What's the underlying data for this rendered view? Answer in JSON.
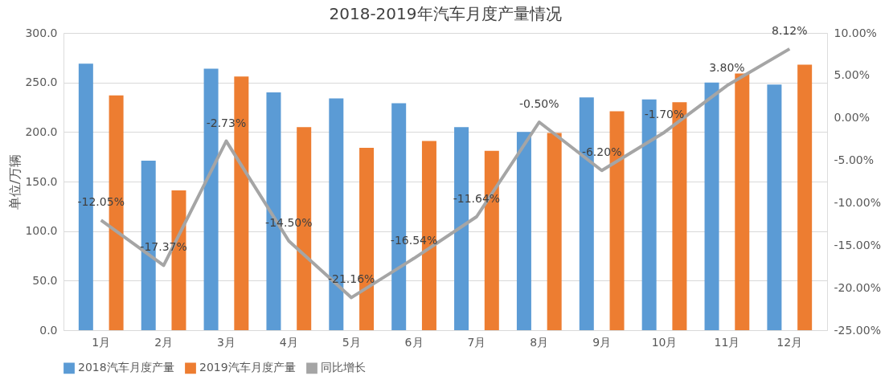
{
  "chart_data": {
    "type": "bar",
    "title": "2018-2019年汽车月度产量情况",
    "ylabel": "单位/万辆",
    "categories": [
      "1月",
      "2月",
      "3月",
      "4月",
      "5月",
      "6月",
      "7月",
      "8月",
      "9月",
      "10月",
      "11月",
      "12月"
    ],
    "series": [
      {
        "name": "2018汽车月度产量",
        "color": "#5b9bd5",
        "values": [
          269,
          171,
          264,
          240,
          234,
          229,
          205,
          200,
          235,
          233,
          250,
          248
        ]
      },
      {
        "name": "2019汽车月度产量",
        "color": "#ed7d31",
        "values": [
          237,
          141,
          256,
          205,
          184,
          191,
          181,
          199,
          221,
          230,
          259,
          268
        ]
      },
      {
        "name": "同比增长",
        "type": "line",
        "axis": "y2",
        "color": "#a5a5a5",
        "values": [
          -12.05,
          -17.37,
          -2.73,
          -14.5,
          -21.16,
          -16.54,
          -11.64,
          -0.5,
          -6.2,
          -1.7,
          3.8,
          8.12
        ],
        "value_labels": [
          "-12.05%",
          "-17.37%",
          "-2.73%",
          "-14.50%",
          "-21.16%",
          "-16.54%",
          "-11.64%",
          "-0.50%",
          "-6.20%",
          "-1.70%",
          "3.80%",
          "8.12%"
        ]
      }
    ],
    "ylim": [
      0,
      300
    ],
    "yticks": [
      {
        "value": 0,
        "label": "0.0"
      },
      {
        "value": 50,
        "label": "50.0"
      },
      {
        "value": 100,
        "label": "100.0"
      },
      {
        "value": 150,
        "label": "150.0"
      },
      {
        "value": 200,
        "label": "200.0"
      },
      {
        "value": 250,
        "label": "250.0"
      },
      {
        "value": 300,
        "label": "300.0"
      }
    ],
    "y2lim": [
      -25,
      10
    ],
    "y2ticks": [
      {
        "value": -25,
        "label": "-25.00%"
      },
      {
        "value": -20,
        "label": "-20.00%"
      },
      {
        "value": -15,
        "label": "-15.00%"
      },
      {
        "value": -10,
        "label": "-10.00%"
      },
      {
        "value": -5,
        "label": "-5.00%"
      },
      {
        "value": 0,
        "label": "0.00%"
      },
      {
        "value": 5,
        "label": "5.00%"
      },
      {
        "value": 10,
        "label": "10.00%"
      }
    ],
    "grid": "y",
    "legend": "bottom"
  }
}
